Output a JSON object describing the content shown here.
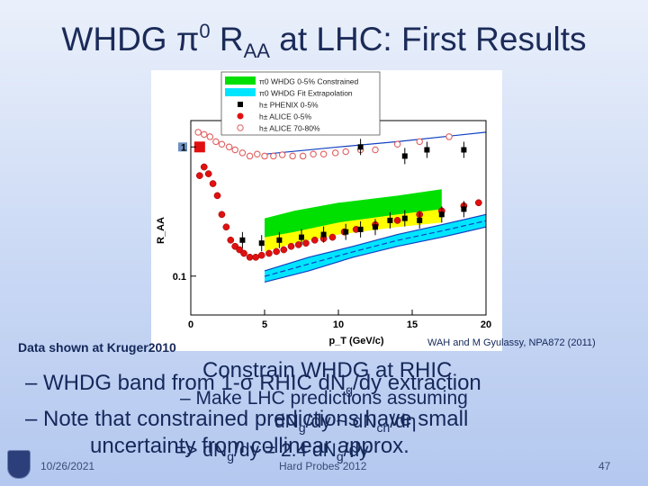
{
  "slide": {
    "title": {
      "part1": "WHDG π",
      "sup": "0",
      "part2": " R",
      "sub": "AA",
      "part3": " at LHC: First Results"
    },
    "data_caption": "Data shown at Kruger2010",
    "reference": "WAH and M Gyulassy, NPA872 (2011)",
    "bullets": [
      {
        "text": "– WHDG band from 1-σ RHIC dN",
        "sub": "g",
        "tail": "/dy extraction"
      },
      {
        "text": "– Note that constrained predictions have small"
      },
      {
        "text": "uncertainty from collinear approx."
      }
    ],
    "overlay": [
      {
        "text": "Constrain WHDG at RHIC"
      },
      {
        "text": "– Make LHC predictions assuming"
      },
      {
        "text": "dN",
        "sub": "g",
        "tail": "/dy ~ dN",
        "sub2": "ch",
        "tail2": "/dη"
      },
      {
        "text": "=> dN",
        "sub": "g",
        "tail": "/dy = 2.4 dN",
        "sub2": "g",
        "tail2": "/dy"
      }
    ],
    "footer": {
      "date": "10/26/2021",
      "center": "Hard Probes 2012",
      "page": "47"
    }
  },
  "chart_data": {
    "type": "scatter",
    "ylog": true,
    "xlabel": "p_T (GeV/c)",
    "ylabel": "R_AA",
    "xlim": [
      0,
      20
    ],
    "ylim": [
      0.05,
      1.6
    ],
    "xticks": [
      0,
      5,
      10,
      15,
      20
    ],
    "yticks": [
      0.1,
      1
    ],
    "legend_position": "top",
    "legend": [
      {
        "label": "π0 WHDG 0-5% Constrained",
        "color": "#00e000",
        "kind": "band"
      },
      {
        "label": "π0 WHDG Fit Extrapolation",
        "color": "#00e5ff",
        "kind": "band"
      },
      {
        "label": "h± PHENIX 0-5%",
        "color": "#000000",
        "kind": "square"
      },
      {
        "label": "h± ALICE 0-5%",
        "color": "#e01010",
        "kind": "circle"
      },
      {
        "label": "h± ALICE 70-80%",
        "color": "#e06060",
        "kind": "open-circle"
      }
    ],
    "bands": [
      {
        "name": "yellow",
        "color": "#ffff00",
        "x": [
          5,
          7,
          10,
          14,
          17
        ],
        "low": [
          0.155,
          0.18,
          0.21,
          0.24,
          0.26
        ],
        "high": [
          0.2,
          0.23,
          0.27,
          0.32,
          0.35
        ]
      },
      {
        "name": "green",
        "color": "#00e000",
        "x": [
          5,
          7,
          10,
          14,
          17
        ],
        "low": [
          0.2,
          0.22,
          0.26,
          0.3,
          0.33
        ],
        "high": [
          0.28,
          0.32,
          0.37,
          0.42,
          0.47
        ]
      },
      {
        "name": "cyan",
        "color": "#00e5ff",
        "x": [
          5,
          8,
          11,
          14,
          17,
          20
        ],
        "low": [
          0.09,
          0.11,
          0.14,
          0.17,
          0.2,
          0.24
        ],
        "high": [
          0.11,
          0.14,
          0.17,
          0.21,
          0.25,
          0.3
        ]
      }
    ],
    "series": [
      {
        "name": "RHIC 70-80% (open circles)",
        "color": "#e06060",
        "points": [
          [
            0.5,
            1.3
          ],
          [
            0.9,
            1.25
          ],
          [
            1.3,
            1.2
          ],
          [
            1.7,
            1.1
          ],
          [
            2.1,
            1.05
          ],
          [
            2.6,
            1.0
          ],
          [
            3.0,
            0.95
          ],
          [
            3.5,
            0.9
          ],
          [
            4.0,
            0.85
          ],
          [
            4.5,
            0.88
          ],
          [
            5,
            0.85
          ],
          [
            5.6,
            0.85
          ],
          [
            6.2,
            0.87
          ],
          [
            6.9,
            0.85
          ],
          [
            7.6,
            0.85
          ],
          [
            8.3,
            0.88
          ],
          [
            9,
            0.88
          ],
          [
            9.8,
            0.9
          ],
          [
            10.5,
            0.92
          ],
          [
            11.5,
            0.95
          ],
          [
            12.5,
            0.95
          ],
          [
            14,
            1.05
          ],
          [
            15.5,
            1.1
          ],
          [
            17.5,
            1.2
          ]
        ]
      },
      {
        "name": "ALICE 0-5% (red filled)",
        "color": "#e01010",
        "points": [
          [
            0.6,
            0.6
          ],
          [
            0.9,
            0.7
          ],
          [
            1.2,
            0.62
          ],
          [
            1.5,
            0.52
          ],
          [
            1.8,
            0.42
          ],
          [
            2.1,
            0.3
          ],
          [
            2.4,
            0.24
          ],
          [
            2.7,
            0.19
          ],
          [
            3.0,
            0.17
          ],
          [
            3.3,
            0.16
          ],
          [
            3.6,
            0.15
          ],
          [
            4.0,
            0.14
          ],
          [
            4.4,
            0.14
          ],
          [
            4.8,
            0.145
          ],
          [
            5.3,
            0.15
          ],
          [
            5.8,
            0.155
          ],
          [
            6.3,
            0.16
          ],
          [
            6.8,
            0.17
          ],
          [
            7.3,
            0.175
          ],
          [
            7.8,
            0.18
          ],
          [
            8.4,
            0.19
          ],
          [
            9.0,
            0.195
          ],
          [
            9.6,
            0.2
          ],
          [
            10.4,
            0.22
          ],
          [
            11.2,
            0.23
          ],
          [
            12.5,
            0.25
          ],
          [
            14,
            0.27
          ],
          [
            15.5,
            0.3
          ],
          [
            17,
            0.32
          ],
          [
            18.5,
            0.35
          ],
          [
            19.5,
            0.37
          ]
        ]
      },
      {
        "name": "PHENIX 0-5% (black squares)",
        "color": "#000000",
        "points": [
          [
            3.5,
            0.19
          ],
          [
            4.8,
            0.18
          ],
          [
            6.0,
            0.19
          ],
          [
            7.5,
            0.2
          ],
          [
            9.0,
            0.21
          ],
          [
            10.5,
            0.22
          ],
          [
            11.5,
            0.23
          ],
          [
            12.5,
            0.24
          ],
          [
            13.5,
            0.27
          ],
          [
            14.5,
            0.28
          ],
          [
            15.5,
            0.27
          ],
          [
            17.0,
            0.3
          ],
          [
            18.5,
            0.33
          ]
        ]
      },
      {
        "name": "high-pT reference (top)",
        "color": "#000000",
        "points": [
          [
            11.5,
            1.0
          ],
          [
            14.5,
            0.85
          ],
          [
            16.0,
            0.95
          ],
          [
            18.5,
            0.95
          ]
        ]
      }
    ]
  }
}
